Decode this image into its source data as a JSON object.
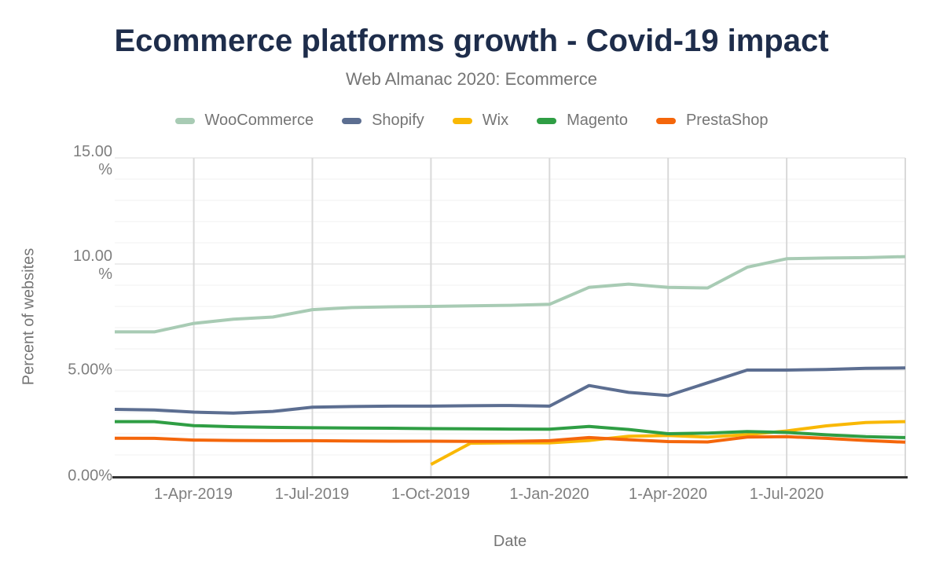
{
  "chart_data": {
    "type": "line",
    "title": "Ecommerce platforms growth - Covid-19 impact",
    "subtitle": "Web Almanac 2020: Ecommerce",
    "xlabel": "Date",
    "ylabel": "Percent of websites",
    "ylim": [
      0,
      15
    ],
    "legend_position": "top",
    "y_tick_values": [
      15,
      10,
      5,
      0
    ],
    "y_tick_labels": [
      "15.00\n%",
      "10.00\n%",
      "5.00%",
      "0.00%"
    ],
    "x_tick_labels": [
      "1-Apr-2019",
      "1-Jul-2019",
      "1-Oct-2019",
      "1-Jan-2020",
      "1-Apr-2020",
      "1-Jul-2020"
    ],
    "x": [
      "Feb-2019",
      "Mar-2019",
      "Apr-2019",
      "May-2019",
      "Jun-2019",
      "Jul-2019",
      "Aug-2019",
      "Sep-2019",
      "Oct-2019",
      "Nov-2019",
      "Dec-2019",
      "Jan-2020",
      "Feb-2020",
      "Mar-2020",
      "Apr-2020",
      "May-2020",
      "Jun-2020",
      "Jul-2020",
      "Aug-2020",
      "Sep-2020",
      "Oct-2020"
    ],
    "series": [
      {
        "name": "WooCommerce",
        "color": "#a8cbb4",
        "values": [
          6.8,
          6.8,
          7.2,
          7.4,
          7.5,
          7.85,
          7.95,
          7.98,
          8.0,
          8.03,
          8.05,
          8.1,
          8.9,
          9.05,
          8.9,
          8.87,
          9.85,
          10.25,
          10.28,
          10.3,
          10.35
        ]
      },
      {
        "name": "Shopify",
        "color": "#5c6e91",
        "values": [
          3.15,
          3.12,
          3.02,
          2.97,
          3.05,
          3.25,
          3.28,
          3.3,
          3.3,
          3.32,
          3.33,
          3.3,
          4.27,
          3.95,
          3.8,
          4.4,
          5.0,
          5.0,
          5.03,
          5.08,
          5.1
        ]
      },
      {
        "name": "Wix",
        "color": "#f9b805",
        "values": [
          null,
          null,
          null,
          null,
          null,
          null,
          null,
          null,
          0.55,
          1.55,
          1.57,
          1.57,
          1.68,
          1.88,
          1.92,
          1.84,
          1.96,
          2.13,
          2.37,
          2.53,
          2.57
        ]
      },
      {
        "name": "Magento",
        "color": "#2f9e44",
        "values": [
          2.57,
          2.57,
          2.38,
          2.33,
          2.3,
          2.28,
          2.27,
          2.26,
          2.24,
          2.23,
          2.22,
          2.21,
          2.34,
          2.2,
          2.0,
          2.03,
          2.1,
          2.06,
          1.95,
          1.86,
          1.82
        ]
      },
      {
        "name": "PrestaShop",
        "color": "#f4660b",
        "values": [
          1.79,
          1.78,
          1.7,
          1.68,
          1.67,
          1.67,
          1.66,
          1.65,
          1.65,
          1.64,
          1.64,
          1.67,
          1.82,
          1.72,
          1.63,
          1.61,
          1.84,
          1.86,
          1.78,
          1.68,
          1.6
        ]
      }
    ],
    "grid": {
      "y_minor_step": 1,
      "y_major_step": 5,
      "minor_color": "#f2f2f2",
      "major_color": "#e7e7e7",
      "vline_color": "#d9d9d9",
      "axis_line_color": "#333333",
      "x_gridline_indices": [
        2,
        5,
        8,
        11,
        14,
        17,
        20
      ]
    },
    "colors": {
      "title": "#1e2d4b",
      "muted_text": "#757575",
      "tick_text": "#7f7f7f"
    }
  }
}
